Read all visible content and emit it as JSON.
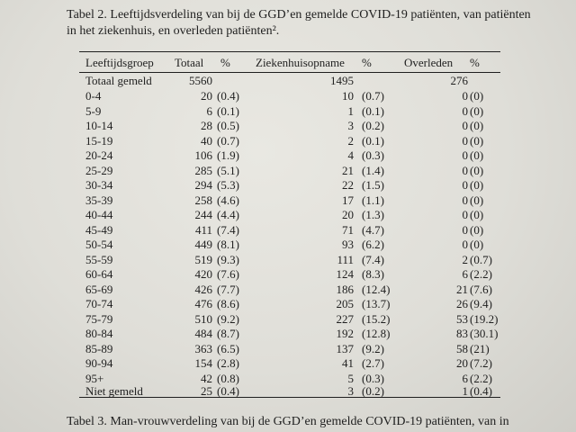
{
  "caption": {
    "table2_line1": "Tabel 2. Leeftijdsverdeling van bij de GGD’en gemelde COVID-19 patiënten, van patiënten",
    "table2_line2": "in het ziekenhuis, en overleden patiënten².",
    "table3_line1": "Tabel 3. Man-vrouwverdeling van bij de GGD’en gemelde COVID-19 patiënten, van in"
  },
  "table": {
    "headers": {
      "group": "Leeftijdsgroep",
      "total": "Totaal",
      "total_pct": "%",
      "hosp": "Ziekenhuisopname",
      "hosp_pct": "%",
      "death": "Overleden",
      "death_pct": "%"
    },
    "rows": [
      {
        "group": "Totaal gemeld",
        "total": "5560",
        "total_pct": "",
        "hosp": "1495",
        "hosp_pct": "",
        "death": "276",
        "death_pct": ""
      },
      {
        "group": "0-4",
        "total": "20",
        "total_pct": "(0.4)",
        "hosp": "10",
        "hosp_pct": "(0.7)",
        "death": "0",
        "death_pct": "(0)"
      },
      {
        "group": "5-9",
        "total": "6",
        "total_pct": "(0.1)",
        "hosp": "1",
        "hosp_pct": "(0.1)",
        "death": "0",
        "death_pct": "(0)"
      },
      {
        "group": "10-14",
        "total": "28",
        "total_pct": "(0.5)",
        "hosp": "3",
        "hosp_pct": "(0.2)",
        "death": "0",
        "death_pct": "(0)"
      },
      {
        "group": "15-19",
        "total": "40",
        "total_pct": "(0.7)",
        "hosp": "2",
        "hosp_pct": "(0.1)",
        "death": "0",
        "death_pct": "(0)"
      },
      {
        "group": "20-24",
        "total": "106",
        "total_pct": "(1.9)",
        "hosp": "4",
        "hosp_pct": "(0.3)",
        "death": "0",
        "death_pct": "(0)"
      },
      {
        "group": "25-29",
        "total": "285",
        "total_pct": "(5.1)",
        "hosp": "21",
        "hosp_pct": "(1.4)",
        "death": "0",
        "death_pct": "(0)"
      },
      {
        "group": "30-34",
        "total": "294",
        "total_pct": "(5.3)",
        "hosp": "22",
        "hosp_pct": "(1.5)",
        "death": "0",
        "death_pct": "(0)"
      },
      {
        "group": "35-39",
        "total": "258",
        "total_pct": "(4.6)",
        "hosp": "17",
        "hosp_pct": "(1.1)",
        "death": "0",
        "death_pct": "(0)"
      },
      {
        "group": "40-44",
        "total": "244",
        "total_pct": "(4.4)",
        "hosp": "20",
        "hosp_pct": "(1.3)",
        "death": "0",
        "death_pct": "(0)"
      },
      {
        "group": "45-49",
        "total": "411",
        "total_pct": "(7.4)",
        "hosp": "71",
        "hosp_pct": "(4.7)",
        "death": "0",
        "death_pct": "(0)"
      },
      {
        "group": "50-54",
        "total": "449",
        "total_pct": "(8.1)",
        "hosp": "93",
        "hosp_pct": "(6.2)",
        "death": "0",
        "death_pct": "(0)"
      },
      {
        "group": "55-59",
        "total": "519",
        "total_pct": "(9.3)",
        "hosp": "111",
        "hosp_pct": "(7.4)",
        "death": "2",
        "death_pct": "(0.7)"
      },
      {
        "group": "60-64",
        "total": "420",
        "total_pct": "(7.6)",
        "hosp": "124",
        "hosp_pct": "(8.3)",
        "death": "6",
        "death_pct": "(2.2)"
      },
      {
        "group": "65-69",
        "total": "426",
        "total_pct": "(7.7)",
        "hosp": "186",
        "hosp_pct": "(12.4)",
        "death": "21",
        "death_pct": "(7.6)"
      },
      {
        "group": "70-74",
        "total": "476",
        "total_pct": "(8.6)",
        "hosp": "205",
        "hosp_pct": "(13.7)",
        "death": "26",
        "death_pct": "(9.4)"
      },
      {
        "group": "75-79",
        "total": "510",
        "total_pct": "(9.2)",
        "hosp": "227",
        "hosp_pct": "(15.2)",
        "death": "53",
        "death_pct": "(19.2)"
      },
      {
        "group": "80-84",
        "total": "484",
        "total_pct": "(8.7)",
        "hosp": "192",
        "hosp_pct": "(12.8)",
        "death": "83",
        "death_pct": "(30.1)"
      },
      {
        "group": "85-89",
        "total": "363",
        "total_pct": "(6.5)",
        "hosp": "137",
        "hosp_pct": "(9.2)",
        "death": "58",
        "death_pct": "(21)"
      },
      {
        "group": "90-94",
        "total": "154",
        "total_pct": "(2.8)",
        "hosp": "41",
        "hosp_pct": "(2.7)",
        "death": "20",
        "death_pct": "(7.2)"
      },
      {
        "group": "95+",
        "total": "42",
        "total_pct": "(0.8)",
        "hosp": "5",
        "hosp_pct": "(0.3)",
        "death": "6",
        "death_pct": "(2.2)"
      },
      {
        "group": "Niet gemeld",
        "total": "25",
        "total_pct": "(0.4)",
        "hosp": "3",
        "hosp_pct": "(0.2)",
        "death": "1",
        "death_pct": "(0.4)"
      }
    ]
  }
}
